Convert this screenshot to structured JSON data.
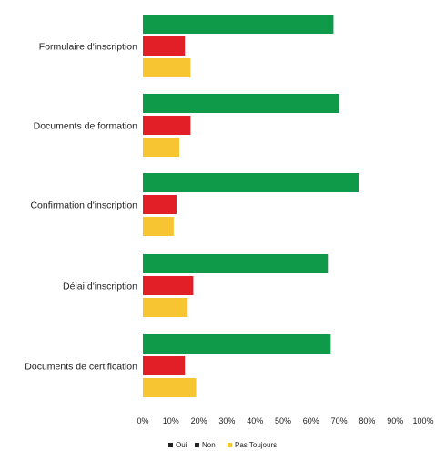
{
  "chart_data": {
    "type": "bar",
    "orientation": "horizontal",
    "categories": [
      "Formulaire d'inscription",
      "Documents de formation",
      "Confirmation d'inscription",
      "Délai d'inscription",
      "Documents de certification"
    ],
    "series": [
      {
        "name": "Oui",
        "color": "#0f9a4a",
        "values": [
          68,
          70,
          77,
          66,
          67
        ]
      },
      {
        "name": "Non",
        "color": "#e21f26",
        "values": [
          15,
          17,
          12,
          18,
          15
        ]
      },
      {
        "name": "Pas Toujours",
        "color": "#f7c531",
        "values": [
          17,
          13,
          11,
          16,
          19
        ]
      }
    ],
    "x_ticks": [
      "0%",
      "10%",
      "20%",
      "30%",
      "40%",
      "50%",
      "60%",
      "70%",
      "80%",
      "90%",
      "100%"
    ],
    "xlim": [
      0,
      100
    ],
    "grid": false,
    "legend_position": "bottom"
  }
}
